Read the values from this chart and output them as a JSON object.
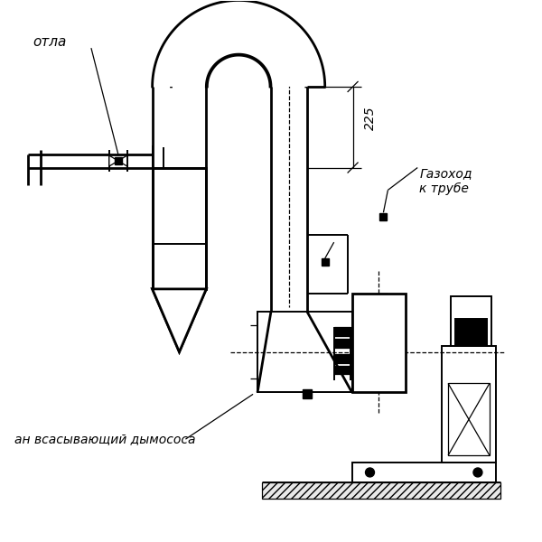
{
  "bg_color": "#ffffff",
  "lw_tk": 2.0,
  "lw_md": 1.4,
  "lw_tn": 0.9,
  "label_kotla": "отла",
  "label_gazokhod": "Газоход\nк трубе",
  "label_vsan": "ан всасывающий дымососа",
  "dim_225": "225"
}
